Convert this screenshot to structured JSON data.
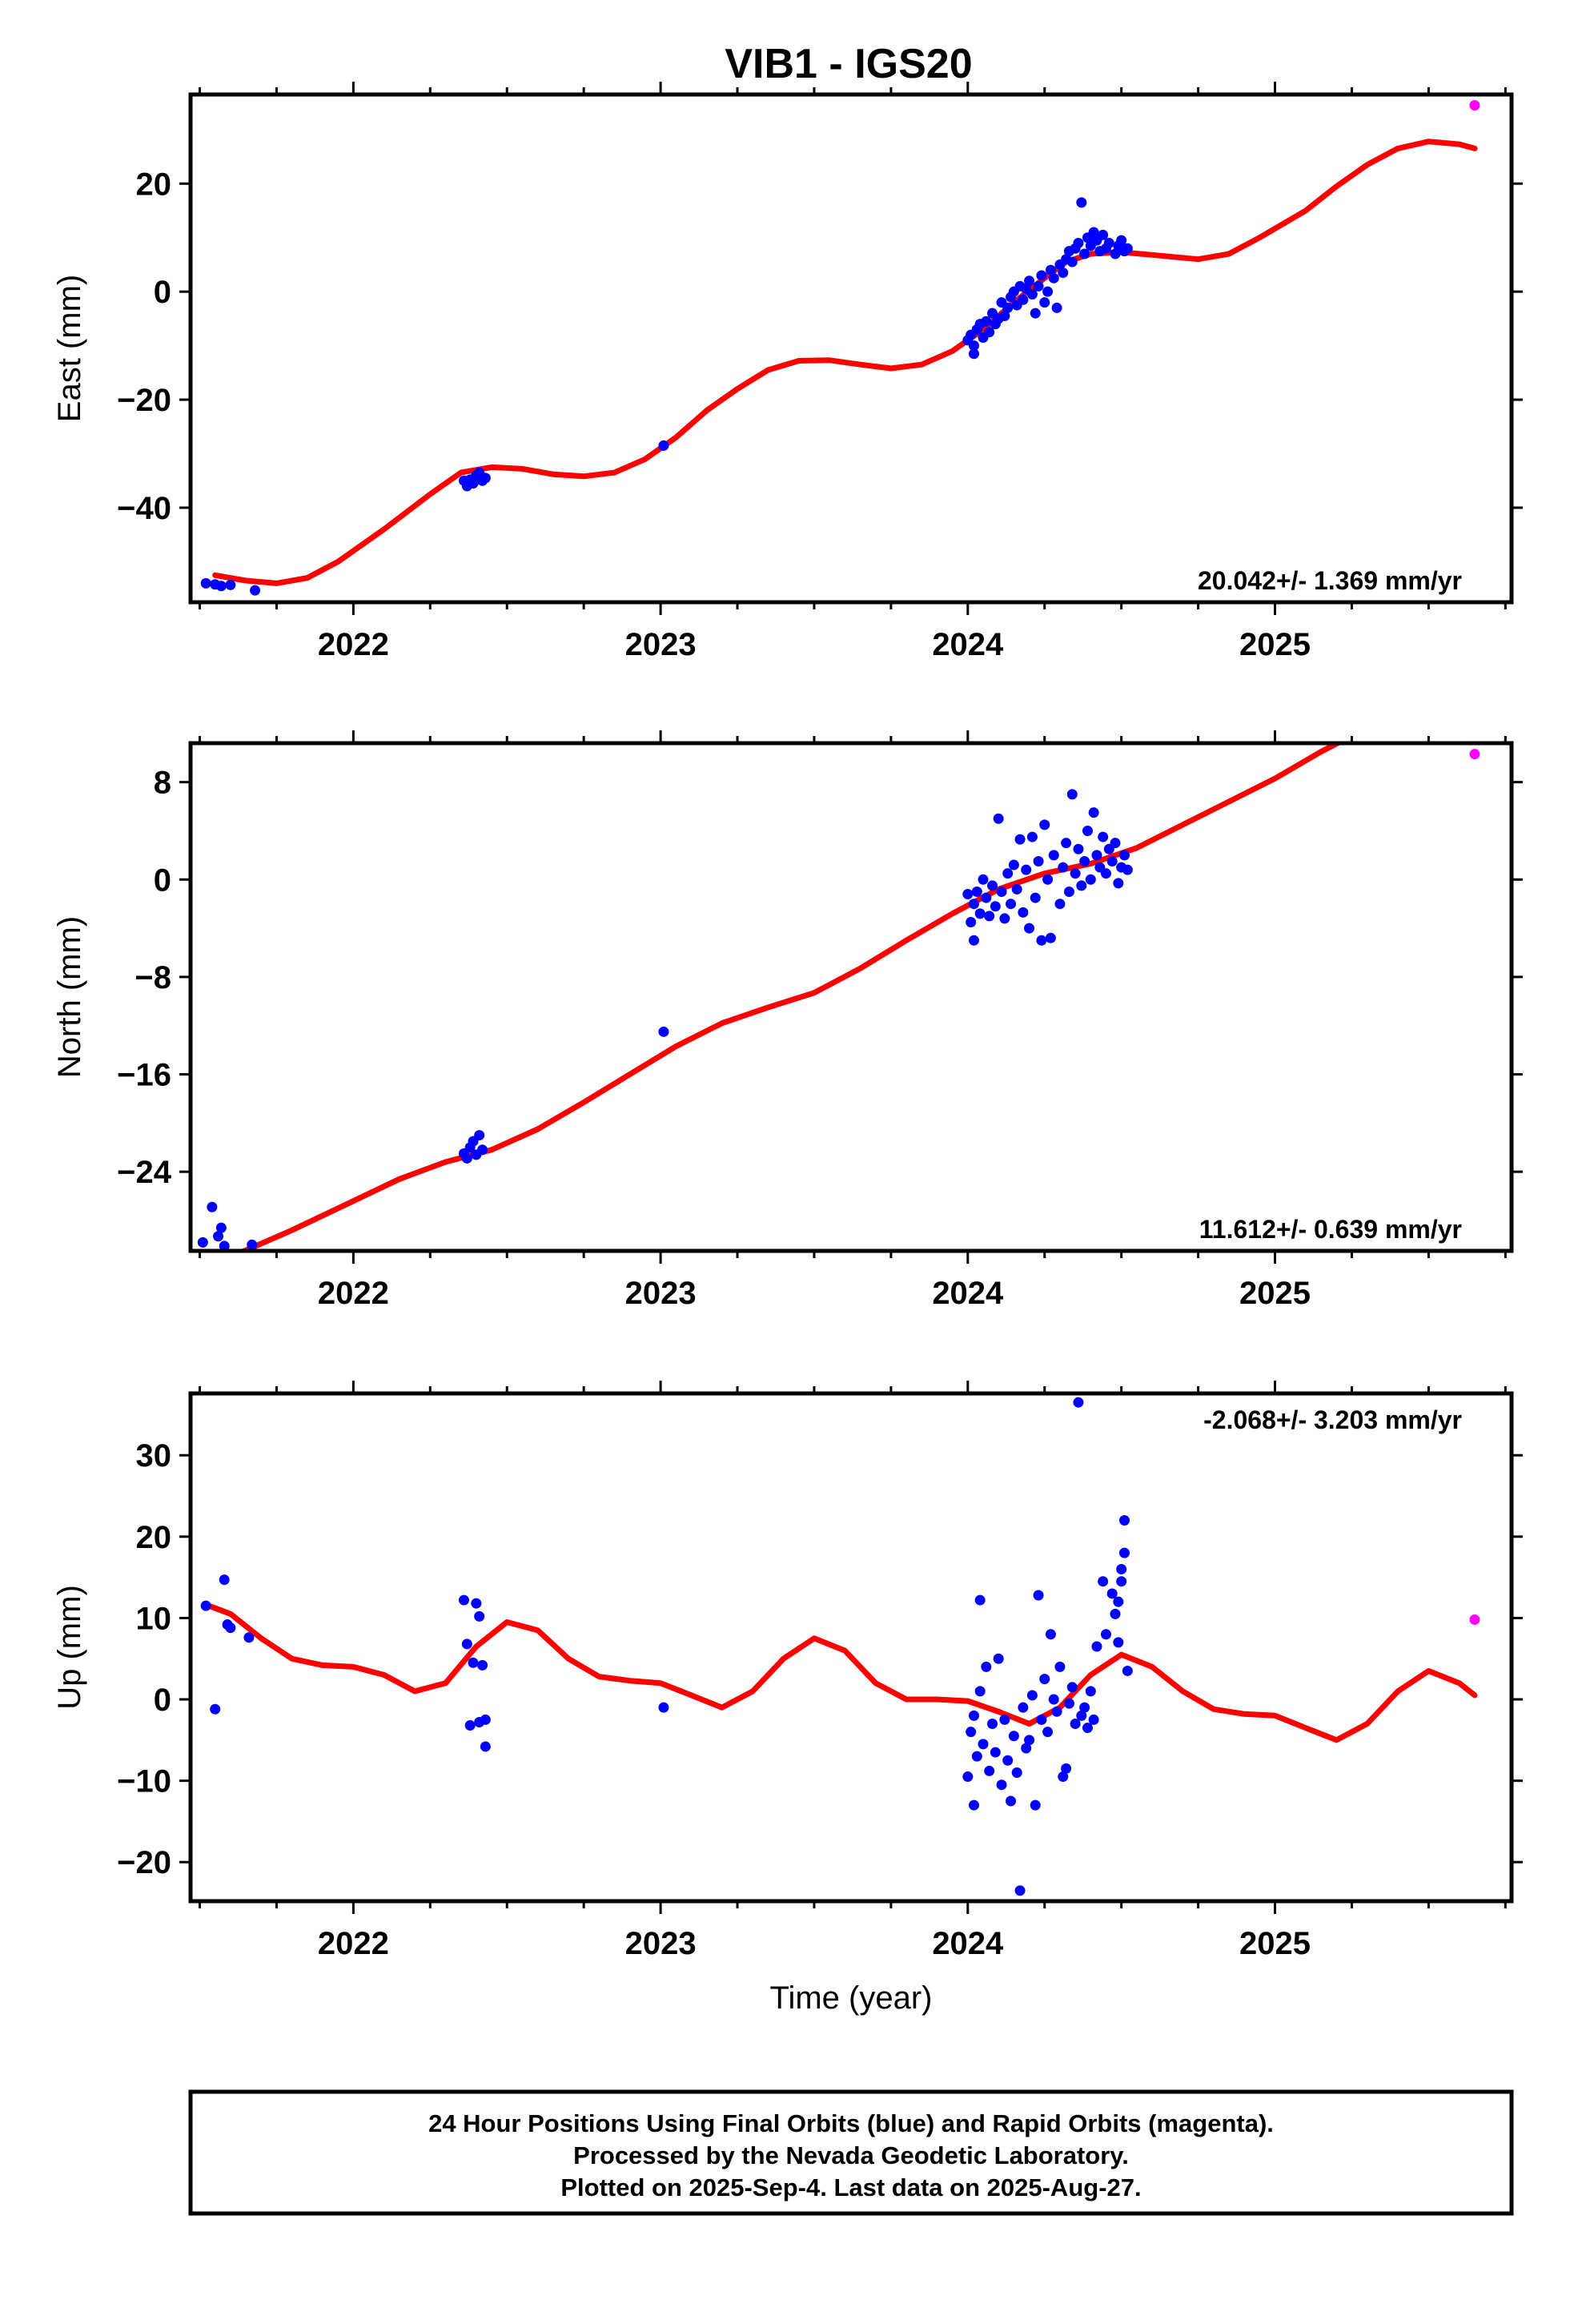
{
  "title": "VIB1 - IGS20",
  "colors": {
    "final": "#0000ff",
    "rapid": "#ff00ff",
    "fit": "#ff0000",
    "axis": "#000000"
  },
  "footer": {
    "line1": "24 Hour Positions Using Final Orbits (blue) and Rapid Orbits (magenta).",
    "line2": "Processed by the Nevada Geodetic Laboratory.",
    "line3": "Plotted on 2025-Sep-4. Last data on 2025-Aug-27."
  },
  "chart_data": [
    {
      "type": "scatter",
      "ylabel": "East (mm)",
      "xlabel": "",
      "rate": "20.042+/- 1.369 mm/yr",
      "rate_position": "bottom-right",
      "xlim": [
        2021.47,
        2025.77
      ],
      "ylim": [
        -57.5,
        36.5
      ],
      "xticks": [
        2022,
        2023,
        2024,
        2025
      ],
      "yticks": [
        -40,
        -20,
        0,
        20
      ],
      "ytick_labels": [
        "−40",
        "−20",
        "0",
        "20"
      ],
      "fit": [
        [
          2021.55,
          -52.5
        ],
        [
          2021.65,
          -53.5
        ],
        [
          2021.75,
          -54
        ],
        [
          2021.85,
          -53
        ],
        [
          2021.95,
          -50
        ],
        [
          2022.1,
          -44
        ],
        [
          2022.25,
          -37.5
        ],
        [
          2022.35,
          -33.5
        ],
        [
          2022.45,
          -32.5
        ],
        [
          2022.55,
          -32.8
        ],
        [
          2022.65,
          -33.8
        ],
        [
          2022.75,
          -34.2
        ],
        [
          2022.85,
          -33.5
        ],
        [
          2022.95,
          -31
        ],
        [
          2023.05,
          -27
        ],
        [
          2023.15,
          -22
        ],
        [
          2023.25,
          -18
        ],
        [
          2023.35,
          -14.5
        ],
        [
          2023.45,
          -12.8
        ],
        [
          2023.55,
          -12.7
        ],
        [
          2023.65,
          -13.5
        ],
        [
          2023.75,
          -14.2
        ],
        [
          2023.85,
          -13.5
        ],
        [
          2023.95,
          -11
        ],
        [
          2024.05,
          -7
        ],
        [
          2024.15,
          -2
        ],
        [
          2024.25,
          2.5
        ],
        [
          2024.32,
          5.5
        ],
        [
          2024.4,
          7
        ],
        [
          2024.5,
          7.3
        ],
        [
          2024.6,
          6.8
        ],
        [
          2024.75,
          6
        ],
        [
          2024.85,
          7
        ],
        [
          2024.95,
          10
        ],
        [
          2025.1,
          15
        ],
        [
          2025.2,
          19.5
        ],
        [
          2025.3,
          23.5
        ],
        [
          2025.4,
          26.5
        ],
        [
          2025.5,
          27.8
        ],
        [
          2025.6,
          27.3
        ],
        [
          2025.65,
          26.5
        ]
      ],
      "final_points": [
        [
          2021.52,
          -54
        ],
        [
          2021.55,
          -54.2
        ],
        [
          2021.57,
          -54.5
        ],
        [
          2021.6,
          -54.3
        ],
        [
          2021.68,
          -55.3
        ],
        [
          2022.36,
          -35
        ],
        [
          2022.37,
          -36
        ],
        [
          2022.38,
          -34.8
        ],
        [
          2022.39,
          -35.5
        ],
        [
          2022.4,
          -34
        ],
        [
          2022.41,
          -33.5
        ],
        [
          2022.42,
          -35
        ],
        [
          2022.43,
          -34.5
        ],
        [
          2023.01,
          -28.5
        ],
        [
          2024.0,
          -9
        ],
        [
          2024.01,
          -8
        ],
        [
          2024.02,
          -10
        ],
        [
          2024.02,
          -11.5
        ],
        [
          2024.03,
          -7
        ],
        [
          2024.04,
          -6
        ],
        [
          2024.05,
          -8.5
        ],
        [
          2024.06,
          -5.5
        ],
        [
          2024.07,
          -7.5
        ],
        [
          2024.08,
          -4
        ],
        [
          2024.09,
          -6
        ],
        [
          2024.1,
          -5
        ],
        [
          2024.11,
          -2
        ],
        [
          2024.12,
          -4.5
        ],
        [
          2024.13,
          -3
        ],
        [
          2024.14,
          -1
        ],
        [
          2024.15,
          0
        ],
        [
          2024.16,
          -2.5
        ],
        [
          2024.17,
          1
        ],
        [
          2024.18,
          -1.5
        ],
        [
          2024.19,
          0.5
        ],
        [
          2024.2,
          2
        ],
        [
          2024.21,
          -0.5
        ],
        [
          2024.22,
          -4
        ],
        [
          2024.23,
          1
        ],
        [
          2024.24,
          3
        ],
        [
          2024.25,
          -2
        ],
        [
          2024.26,
          0
        ],
        [
          2024.27,
          4
        ],
        [
          2024.28,
          2.5
        ],
        [
          2024.29,
          -3
        ],
        [
          2024.3,
          5
        ],
        [
          2024.31,
          3.5
        ],
        [
          2024.32,
          6
        ],
        [
          2024.33,
          7.5
        ],
        [
          2024.34,
          5.5
        ],
        [
          2024.35,
          8
        ],
        [
          2024.36,
          9
        ],
        [
          2024.37,
          16.5
        ],
        [
          2024.38,
          7
        ],
        [
          2024.39,
          10
        ],
        [
          2024.4,
          8.5
        ],
        [
          2024.41,
          11
        ],
        [
          2024.42,
          9.5
        ],
        [
          2024.43,
          7.5
        ],
        [
          2024.44,
          10.5
        ],
        [
          2024.45,
          8
        ],
        [
          2024.46,
          9
        ],
        [
          2024.48,
          7
        ],
        [
          2024.49,
          8.5
        ],
        [
          2024.5,
          9.5
        ],
        [
          2024.51,
          7.5
        ],
        [
          2024.52,
          8
        ]
      ],
      "rapid_points": [
        [
          2025.65,
          34.5
        ]
      ]
    },
    {
      "type": "scatter",
      "ylabel": "North (mm)",
      "xlabel": "",
      "rate": "11.612+/- 0.639 mm/yr",
      "rate_position": "bottom-right",
      "xlim": [
        2021.47,
        2025.77
      ],
      "ylim": [
        -30.5,
        11.2
      ],
      "xticks": [
        2022,
        2023,
        2024,
        2025
      ],
      "yticks": [
        -24,
        -16,
        -8,
        0,
        8
      ],
      "ytick_labels": [
        "−24",
        "−16",
        "−8",
        "0",
        "8"
      ],
      "fit": [
        [
          2021.6,
          -31
        ],
        [
          2021.8,
          -28.8
        ],
        [
          2022.0,
          -26.4
        ],
        [
          2022.15,
          -24.6
        ],
        [
          2022.3,
          -23.2
        ],
        [
          2022.45,
          -22.2
        ],
        [
          2022.6,
          -20.5
        ],
        [
          2022.75,
          -18.3
        ],
        [
          2022.9,
          -16
        ],
        [
          2023.05,
          -13.7
        ],
        [
          2023.2,
          -11.8
        ],
        [
          2023.35,
          -10.5
        ],
        [
          2023.5,
          -9.3
        ],
        [
          2023.65,
          -7.3
        ],
        [
          2023.8,
          -5
        ],
        [
          2023.95,
          -2.8
        ],
        [
          2024.1,
          -0.8
        ],
        [
          2024.25,
          0.5
        ],
        [
          2024.4,
          1.3
        ],
        [
          2024.55,
          2.6
        ],
        [
          2024.7,
          4.5
        ],
        [
          2024.85,
          6.4
        ],
        [
          2025.0,
          8.3
        ],
        [
          2025.15,
          10.5
        ],
        [
          2025.25,
          11.8
        ]
      ],
      "final_points": [
        [
          2021.51,
          -29.8
        ],
        [
          2021.54,
          -26.9
        ],
        [
          2021.56,
          -29.3
        ],
        [
          2021.57,
          -28.6
        ],
        [
          2021.58,
          -30.1
        ],
        [
          2021.67,
          -30
        ],
        [
          2022.36,
          -22.5
        ],
        [
          2022.37,
          -22.9
        ],
        [
          2022.38,
          -22
        ],
        [
          2022.39,
          -21.5
        ],
        [
          2022.4,
          -22.6
        ],
        [
          2022.41,
          -21
        ],
        [
          2022.42,
          -22.2
        ],
        [
          2023.01,
          -12.5
        ],
        [
          2024.0,
          -1.2
        ],
        [
          2024.01,
          -3.5
        ],
        [
          2024.02,
          -5
        ],
        [
          2024.02,
          -2
        ],
        [
          2024.03,
          -1
        ],
        [
          2024.04,
          -2.8
        ],
        [
          2024.05,
          0
        ],
        [
          2024.06,
          -1.5
        ],
        [
          2024.07,
          -3
        ],
        [
          2024.08,
          -0.5
        ],
        [
          2024.09,
          -2.2
        ],
        [
          2024.1,
          5
        ],
        [
          2024.11,
          -1
        ],
        [
          2024.12,
          -3.2
        ],
        [
          2024.13,
          0.5
        ],
        [
          2024.14,
          -2
        ],
        [
          2024.15,
          1.2
        ],
        [
          2024.16,
          -0.8
        ],
        [
          2024.17,
          3.3
        ],
        [
          2024.18,
          -2.7
        ],
        [
          2024.19,
          0.8
        ],
        [
          2024.2,
          -4
        ],
        [
          2024.21,
          3.5
        ],
        [
          2024.22,
          -1.5
        ],
        [
          2024.23,
          1.5
        ],
        [
          2024.24,
          -5
        ],
        [
          2024.25,
          4.5
        ],
        [
          2024.26,
          0
        ],
        [
          2024.27,
          -4.8
        ],
        [
          2024.28,
          2
        ],
        [
          2024.3,
          -2
        ],
        [
          2024.31,
          1
        ],
        [
          2024.32,
          3
        ],
        [
          2024.33,
          -1
        ],
        [
          2024.34,
          7
        ],
        [
          2024.35,
          0.5
        ],
        [
          2024.36,
          2.5
        ],
        [
          2024.37,
          -0.5
        ],
        [
          2024.38,
          1.5
        ],
        [
          2024.39,
          4
        ],
        [
          2024.4,
          0
        ],
        [
          2024.41,
          5.5
        ],
        [
          2024.42,
          2
        ],
        [
          2024.43,
          1
        ],
        [
          2024.44,
          3.5
        ],
        [
          2024.45,
          0.5
        ],
        [
          2024.46,
          2.5
        ],
        [
          2024.47,
          1.5
        ],
        [
          2024.48,
          3
        ],
        [
          2024.49,
          -0.3
        ],
        [
          2024.5,
          1
        ],
        [
          2024.51,
          2
        ],
        [
          2024.52,
          0.8
        ]
      ],
      "rapid_points": [
        [
          2025.65,
          10.3
        ]
      ]
    },
    {
      "type": "scatter",
      "ylabel": "Up (mm)",
      "xlabel": "Time (year)",
      "rate": "-2.068+/- 3.203 mm/yr",
      "rate_position": "top-right",
      "xlim": [
        2021.47,
        2025.77
      ],
      "ylim": [
        -24.8,
        37.6
      ],
      "xticks": [
        2022,
        2023,
        2024,
        2025
      ],
      "yticks": [
        -20,
        -10,
        0,
        10,
        20,
        30
      ],
      "ytick_labels": [
        "−20",
        "−10",
        "0",
        "10",
        "20",
        "30"
      ],
      "fit": [
        [
          2021.53,
          11.5
        ],
        [
          2021.6,
          10.5
        ],
        [
          2021.7,
          7.5
        ],
        [
          2021.8,
          5
        ],
        [
          2021.9,
          4.2
        ],
        [
          2022.0,
          4
        ],
        [
          2022.1,
          3
        ],
        [
          2022.2,
          1
        ],
        [
          2022.3,
          2
        ],
        [
          2022.4,
          6.5
        ],
        [
          2022.5,
          9.5
        ],
        [
          2022.6,
          8.5
        ],
        [
          2022.7,
          5
        ],
        [
          2022.8,
          2.8
        ],
        [
          2022.9,
          2.3
        ],
        [
          2023.0,
          2
        ],
        [
          2023.1,
          0.5
        ],
        [
          2023.2,
          -1
        ],
        [
          2023.3,
          1
        ],
        [
          2023.4,
          5
        ],
        [
          2023.5,
          7.5
        ],
        [
          2023.6,
          6
        ],
        [
          2023.7,
          2
        ],
        [
          2023.8,
          0
        ],
        [
          2023.9,
          0
        ],
        [
          2024.0,
          -0.2
        ],
        [
          2024.1,
          -1.5
        ],
        [
          2024.2,
          -3
        ],
        [
          2024.3,
          -1
        ],
        [
          2024.4,
          3
        ],
        [
          2024.5,
          5.5
        ],
        [
          2024.6,
          4
        ],
        [
          2024.7,
          1
        ],
        [
          2024.8,
          -1.2
        ],
        [
          2024.9,
          -1.8
        ],
        [
          2025.0,
          -2
        ],
        [
          2025.1,
          -3.5
        ],
        [
          2025.2,
          -5
        ],
        [
          2025.3,
          -3
        ],
        [
          2025.4,
          1
        ],
        [
          2025.5,
          3.5
        ],
        [
          2025.6,
          2
        ],
        [
          2025.65,
          0.5
        ]
      ],
      "final_points": [
        [
          2021.52,
          11.5
        ],
        [
          2021.55,
          -1.2
        ],
        [
          2021.58,
          14.7
        ],
        [
          2021.59,
          9.2
        ],
        [
          2021.6,
          8.8
        ],
        [
          2021.66,
          7.6
        ],
        [
          2022.36,
          12.2
        ],
        [
          2022.37,
          6.8
        ],
        [
          2022.38,
          -3.2
        ],
        [
          2022.39,
          4.5
        ],
        [
          2022.4,
          11.8
        ],
        [
          2022.41,
          -2.8
        ],
        [
          2022.41,
          10.2
        ],
        [
          2022.42,
          4.2
        ],
        [
          2022.43,
          -5.8
        ],
        [
          2022.43,
          -2.5
        ],
        [
          2023.01,
          -1
        ],
        [
          2024.0,
          -9.5
        ],
        [
          2024.01,
          -4
        ],
        [
          2024.02,
          -13
        ],
        [
          2024.02,
          -2
        ],
        [
          2024.03,
          -7
        ],
        [
          2024.04,
          12.2
        ],
        [
          2024.04,
          1
        ],
        [
          2024.05,
          -5.5
        ],
        [
          2024.06,
          4
        ],
        [
          2024.07,
          -8.8
        ],
        [
          2024.08,
          -3
        ],
        [
          2024.09,
          -6.5
        ],
        [
          2024.1,
          5
        ],
        [
          2024.11,
          -10.5
        ],
        [
          2024.12,
          -2.5
        ],
        [
          2024.13,
          -7.5
        ],
        [
          2024.14,
          -12.5
        ],
        [
          2024.15,
          -4.5
        ],
        [
          2024.16,
          -9
        ],
        [
          2024.17,
          -23.5
        ],
        [
          2024.18,
          -1
        ],
        [
          2024.19,
          -6
        ],
        [
          2024.2,
          -5
        ],
        [
          2024.21,
          0.5
        ],
        [
          2024.22,
          -13
        ],
        [
          2024.23,
          12.8
        ],
        [
          2024.24,
          -2.5
        ],
        [
          2024.25,
          2.5
        ],
        [
          2024.26,
          -4
        ],
        [
          2024.27,
          8
        ],
        [
          2024.28,
          0
        ],
        [
          2024.29,
          -1.5
        ],
        [
          2024.3,
          4
        ],
        [
          2024.31,
          -9.5
        ],
        [
          2024.32,
          -8.5
        ],
        [
          2024.33,
          -0.5
        ],
        [
          2024.34,
          1.5
        ],
        [
          2024.35,
          -3
        ],
        [
          2024.36,
          36.5
        ],
        [
          2024.37,
          -2
        ],
        [
          2024.38,
          -1
        ],
        [
          2024.39,
          -3.5
        ],
        [
          2024.4,
          1
        ],
        [
          2024.41,
          -2.5
        ],
        [
          2024.42,
          6.5
        ],
        [
          2024.44,
          14.5
        ],
        [
          2024.45,
          8
        ],
        [
          2024.47,
          13
        ],
        [
          2024.48,
          10.5
        ],
        [
          2024.49,
          12
        ],
        [
          2024.5,
          14.5
        ],
        [
          2024.51,
          22
        ],
        [
          2024.52,
          3.5
        ],
        [
          2024.5,
          16
        ],
        [
          2024.49,
          7
        ],
        [
          2024.51,
          18
        ]
      ],
      "rapid_points": [
        [
          2025.65,
          9.8
        ]
      ]
    }
  ]
}
